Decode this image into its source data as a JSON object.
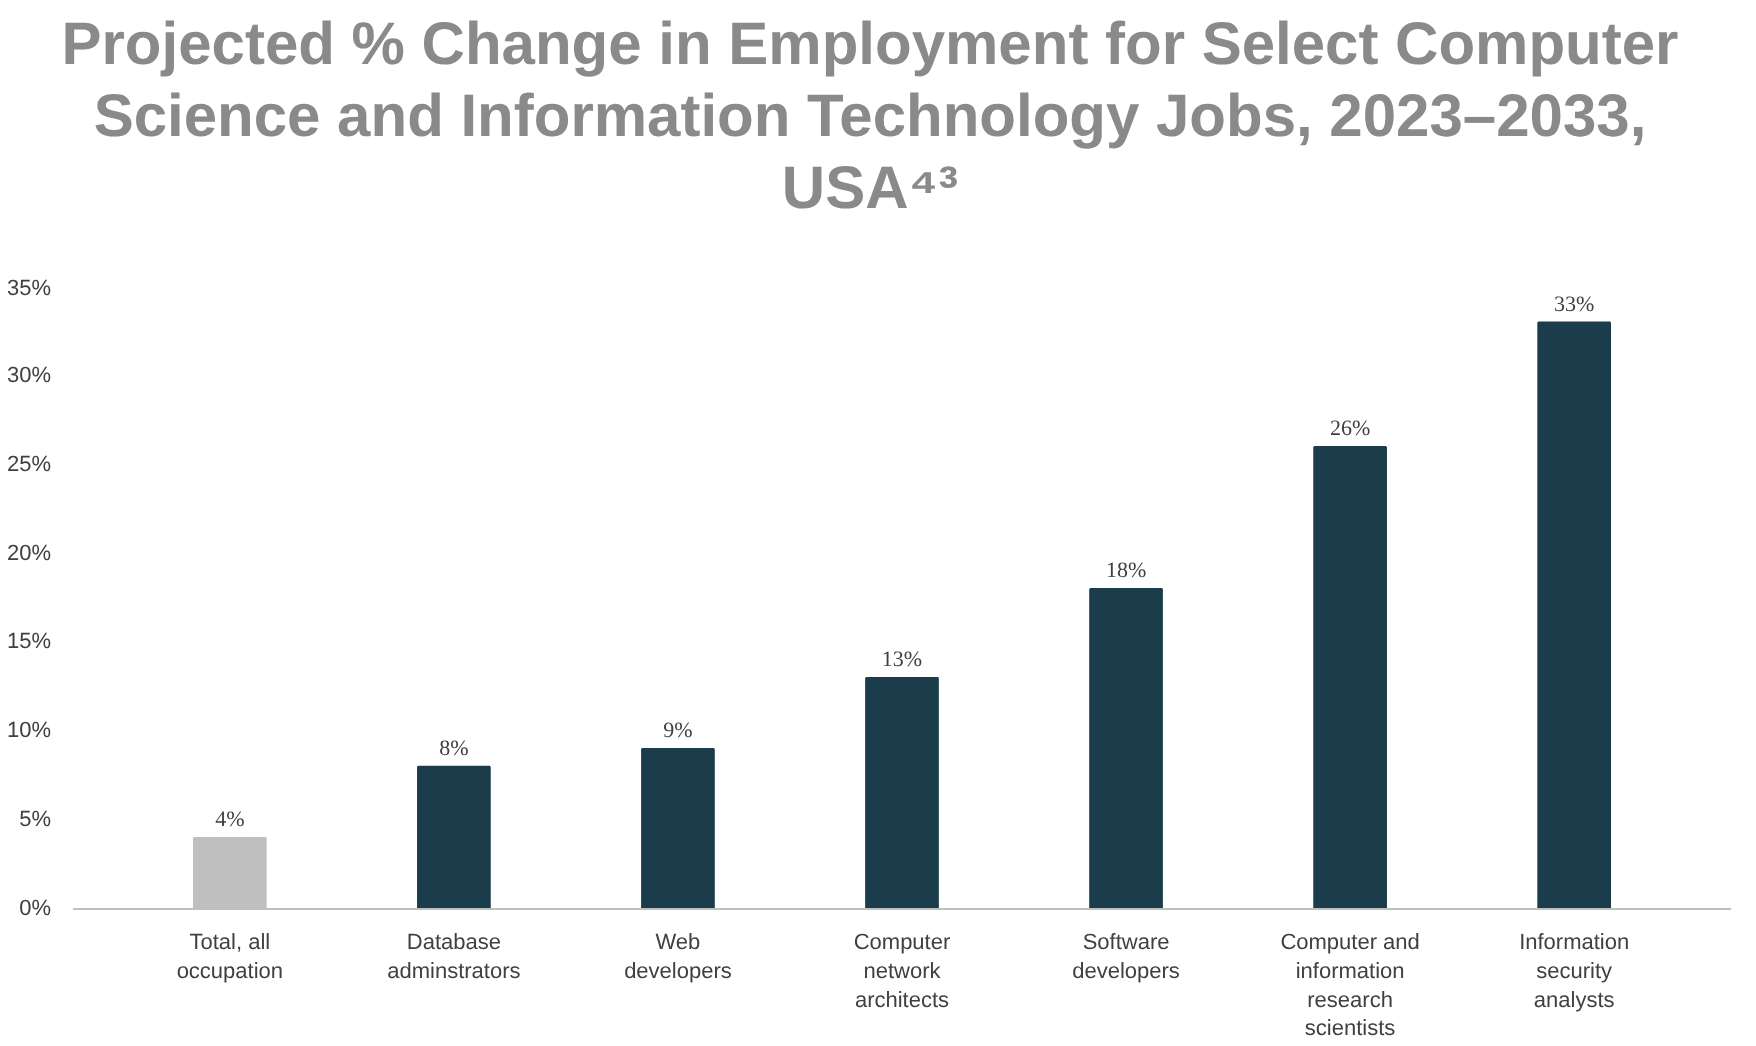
{
  "chart_data": {
    "type": "bar",
    "title": "Projected % Change in Employment for Select Computer Science and Information Technology Jobs, 2023–2033, USA⁴³",
    "categories": [
      "Total, all occupation",
      "Database adminstrators",
      "Web developers",
      "Computer network architects",
      "Software developers",
      "Computer and information research scientists",
      "Information security analysts"
    ],
    "values": [
      4,
      8,
      9,
      13,
      18,
      26,
      33
    ],
    "colors": [
      "#bfbfbf",
      "#1b3c4a",
      "#1b3c4a",
      "#1b3c4a",
      "#1b3c4a",
      "#1b3c4a",
      "#1b3c4a"
    ],
    "value_labels": [
      "4%",
      "8%",
      "9%",
      "13%",
      "18%",
      "26%",
      "33%"
    ],
    "ylim": [
      0,
      35
    ],
    "yticks": [
      {
        "value": 0,
        "label": "0%"
      },
      {
        "value": 5,
        "label": "5%"
      },
      {
        "value": 10,
        "label": "10%"
      },
      {
        "value": 15,
        "label": "15%"
      },
      {
        "value": 20,
        "label": "20%"
      },
      {
        "value": 25,
        "label": "25%"
      },
      {
        "value": 30,
        "label": "30%"
      },
      {
        "value": 35,
        "label": "35%"
      }
    ],
    "grid": false
  }
}
